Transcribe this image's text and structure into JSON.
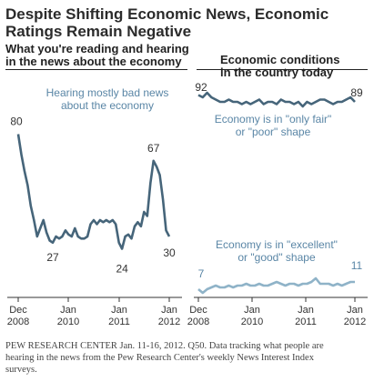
{
  "title_line1": "Despite Shifting Economic News, Economic",
  "title_line2": "Ratings Remain Negative",
  "left_header_line1": "What you're reading and hearing",
  "left_header_line2": "in the news about the economy",
  "right_header_line1": "Economic conditions",
  "right_header_line2": "in the country today",
  "footer_line1": "PEW RESEARCH CENTER Jan. 11-16, 2012. Q50. Data tracking what people are",
  "footer_line2": "hearing in the news from the Pew Research Center's weekly News Interest Index",
  "footer_line3": "surveys.",
  "colors": {
    "dark_series": "#46657a",
    "light_series": "#8fb3c8",
    "label_blue": "#5a86a6",
    "axis": "#333333"
  },
  "chart_data": [
    {
      "type": "line",
      "x_ticks": [
        "Dec 2008",
        "Jan 2010",
        "Jan 2011",
        "Jan 2012"
      ],
      "series": [
        {
          "name": "Hearing mostly bad news about the economy",
          "annotation_line1": "Hearing mostly bad news",
          "annotation_line2": "about the economy",
          "values": [
            80,
            70,
            62,
            55,
            45,
            38,
            30,
            34,
            38,
            32,
            28,
            27,
            30,
            29,
            30,
            33,
            31,
            30,
            34,
            30,
            29,
            29,
            30,
            36,
            38,
            36,
            38,
            37,
            38,
            37,
            38,
            36,
            27,
            24,
            30,
            31,
            29,
            35,
            37,
            35,
            42,
            40,
            56,
            67,
            64,
            60,
            48,
            33,
            30
          ],
          "labels": [
            {
              "index": 0,
              "text": "80"
            },
            {
              "index": 11,
              "text": "27"
            },
            {
              "index": 33,
              "text": "24"
            },
            {
              "index": 43,
              "text": "67"
            },
            {
              "index": 48,
              "text": "30"
            }
          ]
        }
      ]
    },
    {
      "type": "line",
      "x_ticks": [
        "Dec 2008",
        "Jan 2010",
        "Jan 2011",
        "Jan 2012"
      ],
      "series": [
        {
          "name": "Economy is in \"only fair\" or \"poor\" shape",
          "annotation_line1": "Economy is in \"only fair\"",
          "annotation_line2": "or \"poor\" shape",
          "values": [
            92,
            91,
            93,
            91,
            90,
            89,
            89,
            90,
            89,
            89,
            88,
            89,
            88,
            89,
            90,
            88,
            89,
            89,
            88,
            90,
            89,
            89,
            88,
            89,
            87,
            89,
            88,
            89,
            90,
            90,
            89,
            88,
            89,
            89,
            90,
            91,
            89
          ],
          "labels": [
            {
              "index": 0,
              "text": "92"
            },
            {
              "index": 36,
              "text": "89"
            }
          ]
        },
        {
          "name": "Economy is in \"excellent\" or \"good\" shape",
          "annotation_line1": "Economy is in \"excellent\"",
          "annotation_line2": "or \"good\" shape",
          "values": [
            7,
            5,
            7,
            8,
            9,
            8,
            8,
            9,
            8,
            9,
            9,
            10,
            9,
            9,
            10,
            9,
            9,
            10,
            11,
            10,
            9,
            10,
            10,
            9,
            10,
            10,
            11,
            13,
            10,
            10,
            10,
            9,
            10,
            9,
            10,
            11,
            11
          ],
          "labels": [
            {
              "index": 0,
              "text": "7"
            },
            {
              "index": 36,
              "text": "11"
            }
          ]
        }
      ]
    }
  ]
}
